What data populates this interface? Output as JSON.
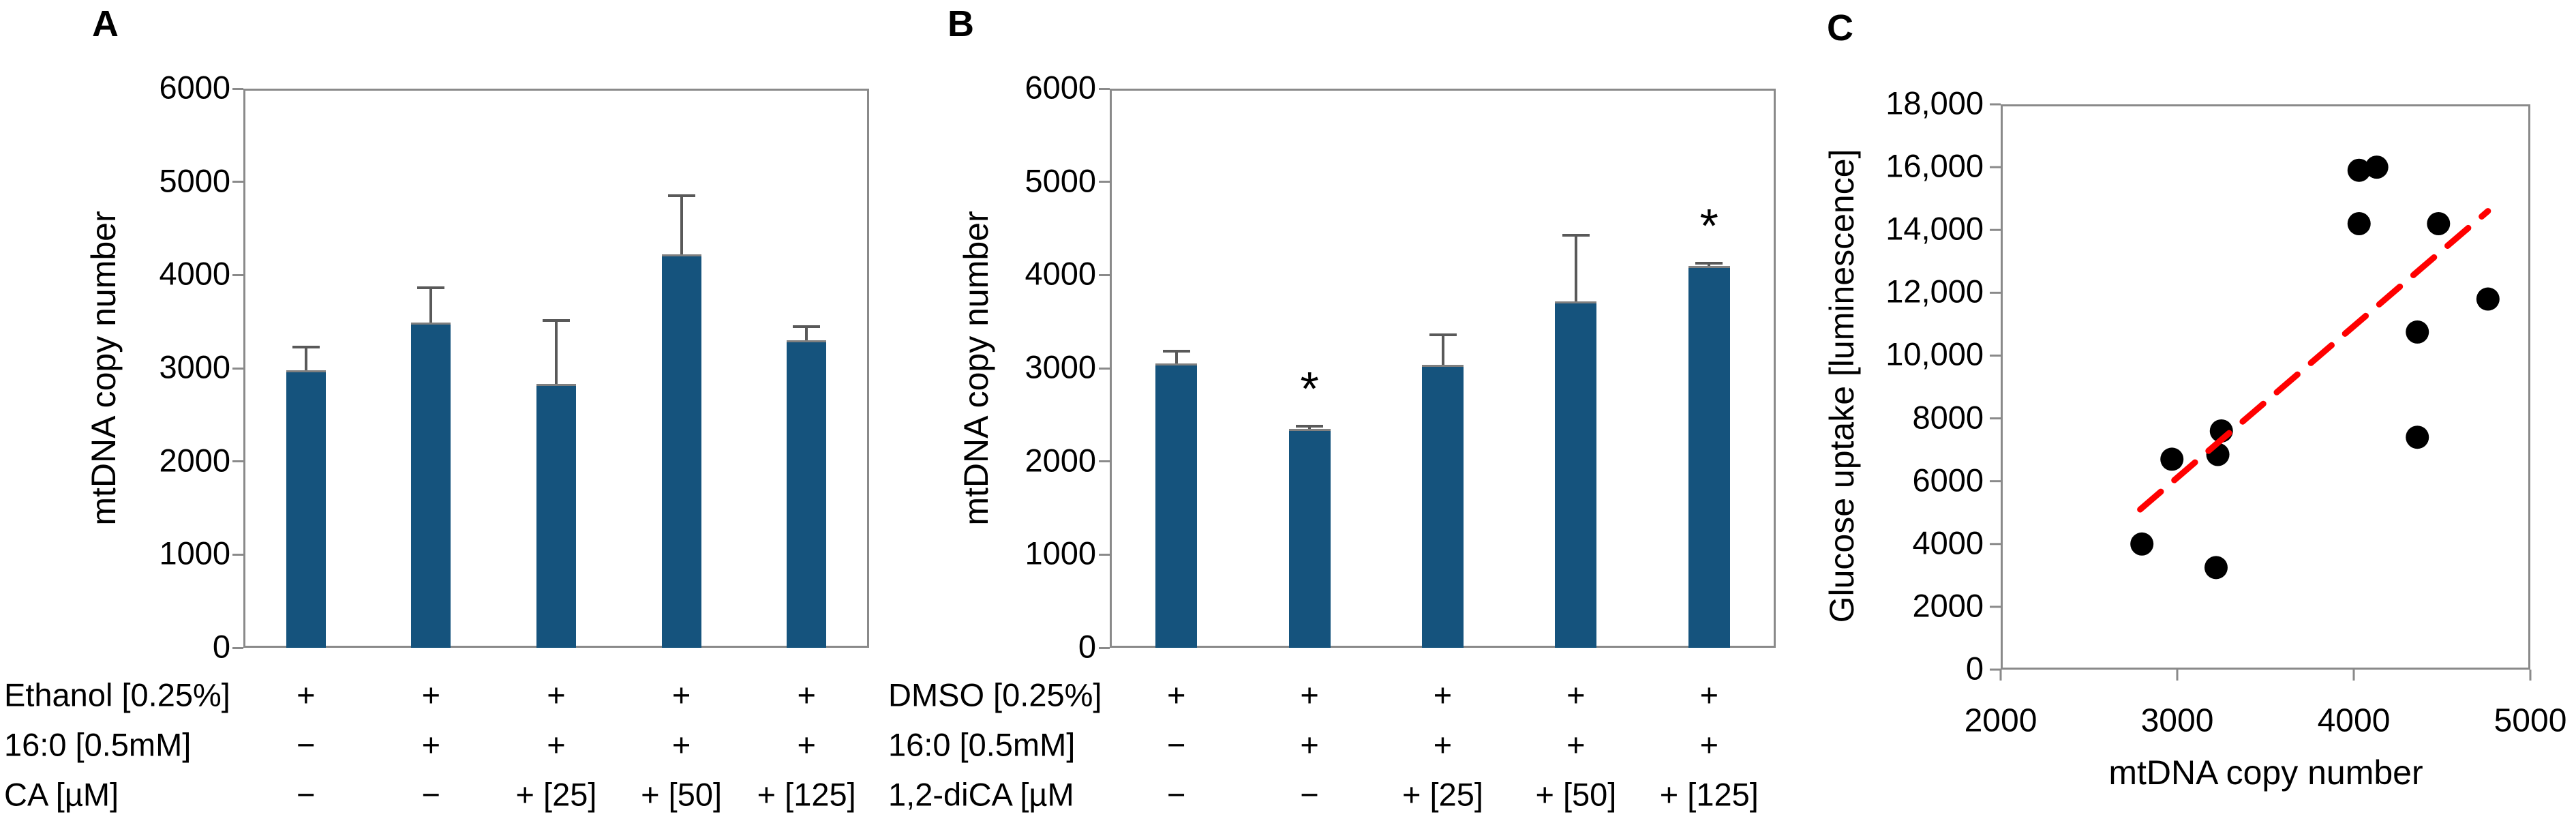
{
  "chart_data": [
    {
      "type": "bar",
      "panel_label": "A",
      "ylabel": "mtDNA copy number",
      "ylim": [
        0,
        6000
      ],
      "yticks": [
        0,
        1000,
        2000,
        3000,
        4000,
        5000,
        6000
      ],
      "ytick_labels": [
        "0",
        "1000",
        "2000",
        "3000",
        "4000",
        "5000",
        "6000"
      ],
      "values": [
        2980,
        3490,
        2830,
        4220,
        3300
      ],
      "errors_plus": [
        250,
        370,
        680,
        630,
        150
      ],
      "asterisks": [
        false,
        false,
        false,
        false,
        false
      ],
      "bar_color": "#15537D",
      "error_color": "#595959",
      "axis_color": "#8a8a8a",
      "treatment_rows": [
        {
          "label": "Ethanol [0.25%]",
          "cells": [
            "+",
            "+",
            "+",
            "+",
            "+"
          ]
        },
        {
          "label": "16:0 [0.5mM]",
          "cells": [
            "−",
            "+",
            "+",
            "+",
            "+"
          ]
        },
        {
          "label": "CA [µM]",
          "cells": [
            "−",
            "−",
            "+ [25]",
            "+ [50]",
            "+ [125]"
          ]
        }
      ]
    },
    {
      "type": "bar",
      "panel_label": "B",
      "ylabel": "mtDNA copy number",
      "ylim": [
        0,
        6000
      ],
      "yticks": [
        0,
        1000,
        2000,
        3000,
        4000,
        5000,
        6000
      ],
      "ytick_labels": [
        "0",
        "1000",
        "2000",
        "3000",
        "4000",
        "5000",
        "6000"
      ],
      "values": [
        3050,
        2350,
        3040,
        3720,
        4100
      ],
      "errors_plus": [
        130,
        30,
        320,
        710,
        30
      ],
      "asterisks": [
        false,
        true,
        false,
        false,
        true
      ],
      "bar_color": "#15537D",
      "error_color": "#595959",
      "axis_color": "#8a8a8a",
      "treatment_rows": [
        {
          "label": "DMSO [0.25%]",
          "cells": [
            "+",
            "+",
            "+",
            "+",
            "+"
          ]
        },
        {
          "label": "16:0 [0.5mM]",
          "cells": [
            "−",
            "+",
            "+",
            "+",
            "+"
          ]
        },
        {
          "label": "1,2-diCA [µM",
          "cells": [
            "−",
            "−",
            "+ [25]",
            "+ [50]",
            "+ [125]"
          ]
        }
      ]
    },
    {
      "type": "scatter",
      "panel_label": "C",
      "xlabel": "mtDNA copy number",
      "ylabel": "Glucose uptake [luminescence]",
      "xlim": [
        2000,
        5000
      ],
      "ylim": [
        0,
        18000
      ],
      "xticks": [
        2000,
        3000,
        4000,
        5000
      ],
      "xtick_labels": [
        "2000",
        "3000",
        "4000",
        "5000"
      ],
      "yticks": [
        0,
        2000,
        4000,
        6000,
        8000,
        10000,
        12000,
        14000,
        16000,
        18000
      ],
      "ytick_labels": [
        "0",
        "2000",
        "4000",
        "6000",
        "8000",
        "10,000",
        "12,000",
        "14,000",
        "16,000",
        "18,000"
      ],
      "points": [
        {
          "x": 2800,
          "y": 4000
        },
        {
          "x": 2970,
          "y": 6700
        },
        {
          "x": 3220,
          "y": 3250
        },
        {
          "x": 3230,
          "y": 6850
        },
        {
          "x": 3250,
          "y": 7600
        },
        {
          "x": 4030,
          "y": 14200
        },
        {
          "x": 4030,
          "y": 15900
        },
        {
          "x": 4130,
          "y": 16000
        },
        {
          "x": 4360,
          "y": 7400
        },
        {
          "x": 4360,
          "y": 10750
        },
        {
          "x": 4480,
          "y": 14200
        },
        {
          "x": 4760,
          "y": 11800
        }
      ],
      "point_color": "#000000",
      "axis_color": "#8a8a8a",
      "trendline": {
        "x1": 2790,
        "y1": 5100,
        "x2": 4760,
        "y2": 14600,
        "color": "#FF0000",
        "dash": true
      }
    }
  ]
}
